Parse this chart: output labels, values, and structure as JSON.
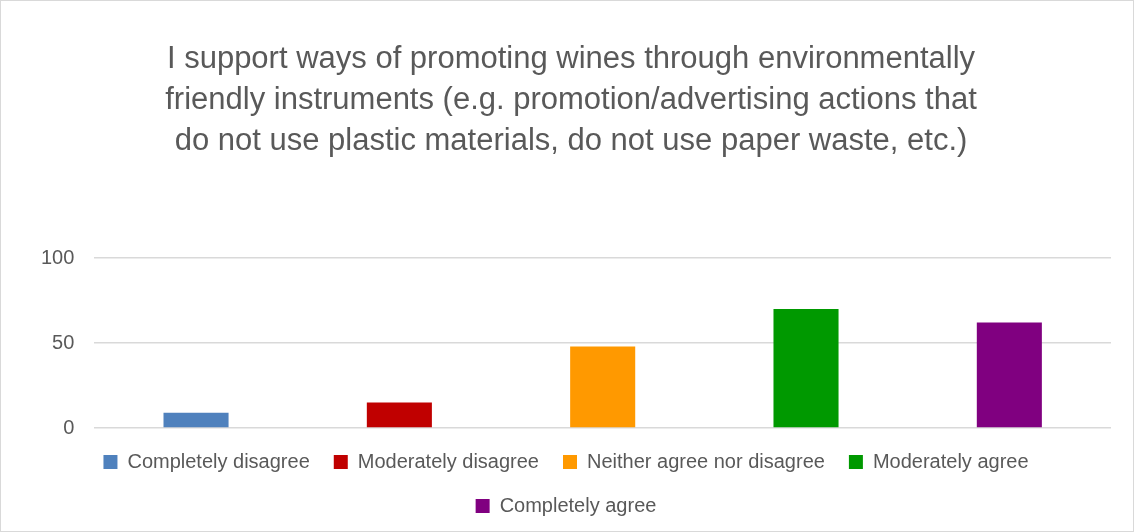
{
  "chart_data": {
    "type": "bar",
    "title": "I support ways of promoting wines through environmentally friendly instruments (e.g. promotion/advertising actions that do not use plastic materials, do not use paper waste, etc.)",
    "categories": [
      null,
      null,
      null,
      null,
      null
    ],
    "series": [
      {
        "name": "Completely disagree",
        "color": "#4f81bd",
        "values": [
          9,
          null,
          null,
          null,
          null
        ]
      },
      {
        "name": "Moderately disagree",
        "color": "#c00000",
        "values": [
          null,
          15,
          null,
          null,
          null
        ]
      },
      {
        "name": "Neither agree nor disagree",
        "color": "#ff9900",
        "values": [
          null,
          null,
          48,
          null,
          null
        ]
      },
      {
        "name": "Moderately agree",
        "color": "#009900",
        "values": [
          null,
          null,
          null,
          70,
          null
        ]
      },
      {
        "name": "Completely agree",
        "color": "#800080",
        "values": [
          null,
          null,
          null,
          null,
          62
        ]
      }
    ],
    "ylim": [
      0,
      100
    ],
    "yticks": [
      0,
      50,
      100
    ],
    "grid": "y",
    "legend": "bottom",
    "tick_labels": "y"
  }
}
